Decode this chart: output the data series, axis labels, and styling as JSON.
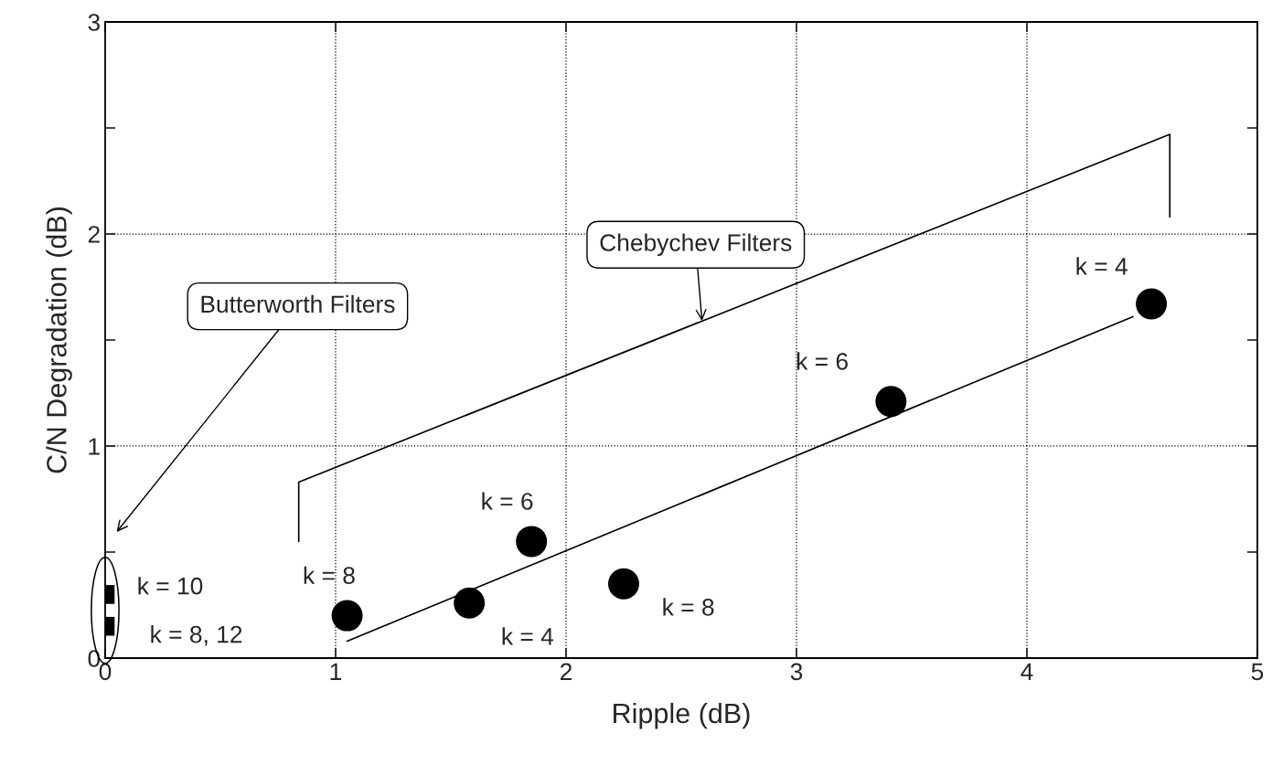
{
  "chart_data": {
    "type": "scatter",
    "xlabel": "Ripple (dB)",
    "ylabel": "C/N Degradation (dB)",
    "xlim": [
      0,
      5
    ],
    "ylim": [
      0,
      3
    ],
    "xticks": [
      0,
      1,
      2,
      3,
      4,
      5
    ],
    "yticks": [
      0,
      {
        "value": 0.5,
        "label": null
      },
      1,
      {
        "value": 1.5,
        "label": null
      },
      2,
      {
        "value": 2.5,
        "label": null
      },
      3
    ],
    "grid": true,
    "series": [
      {
        "marker": "square",
        "color": "#000000",
        "x": [
          0,
          0
        ],
        "values": [
          0.3,
          0.15
        ]
      },
      {
        "marker": "circle",
        "color": "#000000",
        "x": [
          1.05,
          1.58,
          1.85,
          2.25,
          3.41,
          4.54
        ],
        "values": [
          0.2,
          0.26,
          0.55,
          0.35,
          1.21,
          1.67
        ]
      },
      {
        "type": "line",
        "marker": "none",
        "line_style": "solid",
        "color": "#000000",
        "x": [
          1.05,
          4.46
        ],
        "values": [
          0.08,
          1.61
        ]
      },
      {
        "type": "line",
        "marker": "none",
        "line_style": "solid",
        "color": "#000000",
        "x": [
          0.84,
          0.84,
          4.62,
          4.62
        ],
        "values": [
          0.55,
          0.83,
          2.47,
          2.08
        ]
      }
    ],
    "annotations": [
      {
        "text": "k = 10",
        "x": 0,
        "y": 0.3
      },
      {
        "text": "k = 8, 12",
        "x": 0,
        "y": 0.15
      },
      {
        "text": "k = 8",
        "x": 1.05,
        "y": 0.2
      },
      {
        "text": "k = 4",
        "x": 1.58,
        "y": 0.26
      },
      {
        "text": "k = 6",
        "x": 1.85,
        "y": 0.55
      },
      {
        "text": "k = 8",
        "x": 2.25,
        "y": 0.35
      },
      {
        "text": "k = 6",
        "x": 3.41,
        "y": 1.21
      },
      {
        "text": "k = 4",
        "x": 4.54,
        "y": 1.67
      },
      {
        "text": "Chebychev Filters",
        "x": 2.59,
        "y": 1.59
      },
      "Butterworth Filters"
    ]
  }
}
